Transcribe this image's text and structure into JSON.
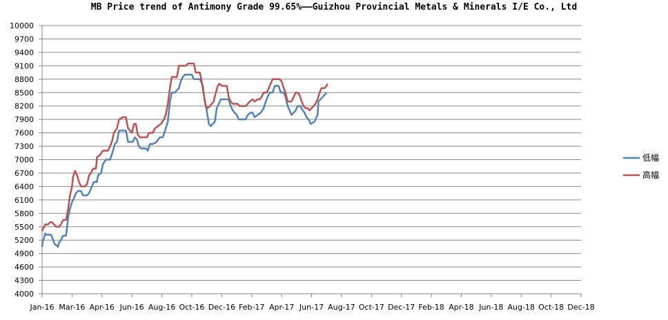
{
  "chart_data": {
    "type": "line",
    "title": "MB Price trend of Antimony Grade 99.65%——Guizhou Provincial Metals & Minerals I/E Co., Ltd",
    "xlabel": "",
    "ylabel": "",
    "ylim": [
      4000,
      10000
    ],
    "y_ticks": [
      4000,
      4300,
      4600,
      4900,
      5200,
      5500,
      5800,
      6100,
      6400,
      6700,
      7000,
      7300,
      7600,
      7900,
      8200,
      8500,
      8800,
      9100,
      9400,
      9700,
      10000
    ],
    "x_tick_labels": [
      "Jan-16",
      "Mar-16",
      "Apr-16",
      "Jun-16",
      "Aug-16",
      "Oct-16",
      "Dec-16",
      "Feb-17",
      "Apr-17",
      "Jun-17",
      "Aug-17",
      "Oct-17",
      "Dec-17",
      "Feb-18",
      "Apr-18",
      "Jun-18",
      "Aug-18",
      "Oct-18",
      "Dec-18"
    ],
    "grid": true,
    "legend_position": "right",
    "series": [
      {
        "name": "低幅",
        "color": "#4f81bd",
        "points": [
          [
            0.0,
            5050
          ],
          [
            0.03,
            5200
          ],
          [
            0.07,
            5250
          ],
          [
            0.1,
            5350
          ],
          [
            0.13,
            5320
          ],
          [
            0.2,
            5320
          ],
          [
            0.3,
            5320
          ],
          [
            0.37,
            5200
          ],
          [
            0.43,
            5100
          ],
          [
            0.5,
            5080
          ],
          [
            0.53,
            5050
          ],
          [
            0.57,
            5150
          ],
          [
            0.63,
            5200
          ],
          [
            0.7,
            5300
          ],
          [
            0.8,
            5300
          ],
          [
            0.87,
            5700
          ],
          [
            0.93,
            5900
          ],
          [
            1.0,
            6050
          ],
          [
            1.07,
            6150
          ],
          [
            1.13,
            6250
          ],
          [
            1.2,
            6300
          ],
          [
            1.3,
            6300
          ],
          [
            1.37,
            6200
          ],
          [
            1.5,
            6200
          ],
          [
            1.57,
            6250
          ],
          [
            1.63,
            6350
          ],
          [
            1.73,
            6500
          ],
          [
            1.83,
            6500
          ],
          [
            1.87,
            6650
          ],
          [
            1.97,
            6700
          ],
          [
            2.03,
            6900
          ],
          [
            2.13,
            7000
          ],
          [
            2.27,
            7000
          ],
          [
            2.37,
            7200
          ],
          [
            2.43,
            7350
          ],
          [
            2.5,
            7400
          ],
          [
            2.57,
            7650
          ],
          [
            2.73,
            7650
          ],
          [
            2.8,
            7650
          ],
          [
            2.87,
            7400
          ],
          [
            3.03,
            7400
          ],
          [
            3.1,
            7500
          ],
          [
            3.17,
            7450
          ],
          [
            3.23,
            7300
          ],
          [
            3.3,
            7250
          ],
          [
            3.47,
            7250
          ],
          [
            3.53,
            7200
          ],
          [
            3.6,
            7350
          ],
          [
            3.7,
            7350
          ],
          [
            3.83,
            7400
          ],
          [
            3.93,
            7500
          ],
          [
            4.03,
            7500
          ],
          [
            4.13,
            7700
          ],
          [
            4.2,
            7850
          ],
          [
            4.27,
            8300
          ],
          [
            4.33,
            8500
          ],
          [
            4.43,
            8500
          ],
          [
            4.57,
            8600
          ],
          [
            4.63,
            8750
          ],
          [
            4.7,
            8850
          ],
          [
            4.77,
            8900
          ],
          [
            4.9,
            8900
          ],
          [
            5.0,
            8900
          ],
          [
            5.07,
            8800
          ],
          [
            5.17,
            8800
          ],
          [
            5.27,
            8800
          ],
          [
            5.37,
            8650
          ],
          [
            5.43,
            8300
          ],
          [
            5.5,
            8100
          ],
          [
            5.57,
            7800
          ],
          [
            5.63,
            7750
          ],
          [
            5.7,
            7800
          ],
          [
            5.77,
            7850
          ],
          [
            5.83,
            8150
          ],
          [
            5.9,
            8250
          ],
          [
            5.97,
            8350
          ],
          [
            6.17,
            8350
          ],
          [
            6.23,
            8350
          ],
          [
            6.3,
            8200
          ],
          [
            6.37,
            8100
          ],
          [
            6.5,
            8000
          ],
          [
            6.57,
            7900
          ],
          [
            6.73,
            7900
          ],
          [
            6.8,
            7900
          ],
          [
            6.87,
            8000
          ],
          [
            6.97,
            8050
          ],
          [
            7.03,
            8050
          ],
          [
            7.1,
            7950
          ],
          [
            7.2,
            8000
          ],
          [
            7.3,
            8050
          ],
          [
            7.4,
            8150
          ],
          [
            7.47,
            8300
          ],
          [
            7.53,
            8400
          ],
          [
            7.6,
            8500
          ],
          [
            7.7,
            8500
          ],
          [
            7.77,
            8650
          ],
          [
            7.9,
            8650
          ],
          [
            7.97,
            8500
          ],
          [
            8.07,
            8500
          ],
          [
            8.13,
            8400
          ],
          [
            8.2,
            8200
          ],
          [
            8.27,
            8100
          ],
          [
            8.33,
            8000
          ],
          [
            8.4,
            8050
          ],
          [
            8.47,
            8100
          ],
          [
            8.53,
            8200
          ],
          [
            8.63,
            8200
          ],
          [
            8.7,
            8100
          ],
          [
            8.77,
            8050
          ],
          [
            8.83,
            7950
          ],
          [
            8.9,
            7900
          ],
          [
            8.97,
            7800
          ],
          [
            9.1,
            7850
          ],
          [
            9.13,
            7900
          ],
          [
            9.2,
            8000
          ],
          [
            9.23,
            8300
          ],
          [
            9.3,
            8350
          ],
          [
            9.37,
            8400
          ],
          [
            9.43,
            8450
          ],
          [
            9.5,
            8500
          ]
        ]
      },
      {
        "name": "高幅",
        "color": "#c0504d",
        "points": [
          [
            0.0,
            5400
          ],
          [
            0.03,
            5450
          ],
          [
            0.07,
            5500
          ],
          [
            0.1,
            5550
          ],
          [
            0.2,
            5550
          ],
          [
            0.27,
            5600
          ],
          [
            0.33,
            5600
          ],
          [
            0.4,
            5550
          ],
          [
            0.47,
            5500
          ],
          [
            0.5,
            5500
          ],
          [
            0.57,
            5500
          ],
          [
            0.63,
            5550
          ],
          [
            0.7,
            5650
          ],
          [
            0.8,
            5650
          ],
          [
            0.87,
            5900
          ],
          [
            0.93,
            6200
          ],
          [
            1.0,
            6400
          ],
          [
            1.03,
            6600
          ],
          [
            1.1,
            6750
          ],
          [
            1.17,
            6650
          ],
          [
            1.23,
            6500
          ],
          [
            1.3,
            6400
          ],
          [
            1.43,
            6400
          ],
          [
            1.5,
            6450
          ],
          [
            1.57,
            6650
          ],
          [
            1.63,
            6700
          ],
          [
            1.7,
            6800
          ],
          [
            1.8,
            6800
          ],
          [
            1.83,
            7050
          ],
          [
            1.93,
            7100
          ],
          [
            2.03,
            7200
          ],
          [
            2.2,
            7200
          ],
          [
            2.27,
            7300
          ],
          [
            2.33,
            7400
          ],
          [
            2.4,
            7600
          ],
          [
            2.5,
            7700
          ],
          [
            2.57,
            7900
          ],
          [
            2.7,
            7950
          ],
          [
            2.8,
            7950
          ],
          [
            2.87,
            7700
          ],
          [
            3.0,
            7600
          ],
          [
            3.07,
            7800
          ],
          [
            3.13,
            7800
          ],
          [
            3.2,
            7550
          ],
          [
            3.27,
            7500
          ],
          [
            3.43,
            7500
          ],
          [
            3.5,
            7500
          ],
          [
            3.57,
            7600
          ],
          [
            3.7,
            7600
          ],
          [
            3.77,
            7700
          ],
          [
            3.87,
            7750
          ],
          [
            3.97,
            7800
          ],
          [
            4.07,
            7900
          ],
          [
            4.13,
            8000
          ],
          [
            4.2,
            8250
          ],
          [
            4.27,
            8600
          ],
          [
            4.33,
            8850
          ],
          [
            4.5,
            8850
          ],
          [
            4.57,
            9100
          ],
          [
            4.8,
            9100
          ],
          [
            4.87,
            9150
          ],
          [
            5.07,
            9150
          ],
          [
            5.13,
            8950
          ],
          [
            5.27,
            8950
          ],
          [
            5.33,
            8750
          ],
          [
            5.4,
            8450
          ],
          [
            5.47,
            8200
          ],
          [
            5.53,
            8150
          ],
          [
            5.6,
            8200
          ],
          [
            5.67,
            8250
          ],
          [
            5.73,
            8300
          ],
          [
            5.8,
            8500
          ],
          [
            5.87,
            8650
          ],
          [
            5.93,
            8700
          ],
          [
            6.0,
            8650
          ],
          [
            6.17,
            8650
          ],
          [
            6.23,
            8400
          ],
          [
            6.3,
            8300
          ],
          [
            6.37,
            8250
          ],
          [
            6.53,
            8250
          ],
          [
            6.6,
            8200
          ],
          [
            6.8,
            8200
          ],
          [
            6.87,
            8250
          ],
          [
            6.93,
            8300
          ],
          [
            7.03,
            8350
          ],
          [
            7.1,
            8300
          ],
          [
            7.2,
            8350
          ],
          [
            7.27,
            8350
          ],
          [
            7.33,
            8400
          ],
          [
            7.4,
            8500
          ],
          [
            7.5,
            8500
          ],
          [
            7.57,
            8600
          ],
          [
            7.63,
            8700
          ],
          [
            7.7,
            8800
          ],
          [
            7.83,
            8800
          ],
          [
            7.93,
            8800
          ],
          [
            8.0,
            8750
          ],
          [
            8.07,
            8600
          ],
          [
            8.13,
            8500
          ],
          [
            8.2,
            8300
          ],
          [
            8.33,
            8300
          ],
          [
            8.4,
            8400
          ],
          [
            8.47,
            8500
          ],
          [
            8.53,
            8500
          ],
          [
            8.6,
            8450
          ],
          [
            8.67,
            8300
          ],
          [
            8.73,
            8200
          ],
          [
            8.8,
            8150
          ],
          [
            8.87,
            8150
          ],
          [
            8.93,
            8100
          ],
          [
            9.0,
            8150
          ],
          [
            9.07,
            8200
          ],
          [
            9.13,
            8250
          ],
          [
            9.2,
            8350
          ],
          [
            9.27,
            8500
          ],
          [
            9.33,
            8600
          ],
          [
            9.43,
            8600
          ],
          [
            9.5,
            8650
          ],
          [
            9.53,
            8700
          ]
        ]
      }
    ]
  }
}
